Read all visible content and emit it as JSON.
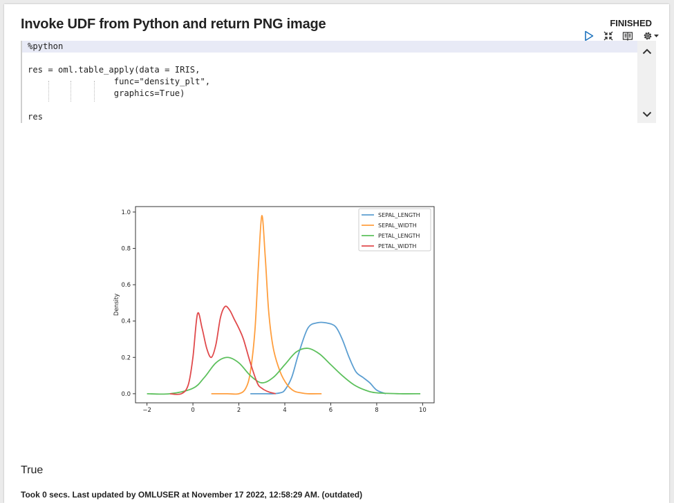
{
  "paragraph": {
    "title": "Invoke UDF from Python and return PNG image",
    "status": "FINISHED"
  },
  "toolbar": {
    "icons": [
      "run-icon",
      "collapse-icon",
      "book-icon",
      "gear-icon",
      "caret-down-icon"
    ]
  },
  "editor": {
    "lines": [
      "%python",
      "",
      "res = oml.table_apply(data = IRIS,",
      "                 func=\"density_plt\",",
      "                 graphics=True)",
      "",
      "res"
    ]
  },
  "colors": {
    "accent": "#1e73be",
    "active_line": "#e8eaf6",
    "sepal_length": "#5b9ed1",
    "sepal_width": "#ff9e3d",
    "petal_length": "#5cc05c",
    "petal_width": "#e0494b"
  },
  "chart_data": {
    "type": "line",
    "title": "",
    "xlabel": "",
    "ylabel": "Density",
    "xlim": [
      -2.5,
      10.5
    ],
    "ylim": [
      -0.05,
      1.03
    ],
    "x_ticks": [
      -2,
      0,
      2,
      4,
      6,
      8,
      10
    ],
    "y_ticks": [
      "0.0",
      "0.2",
      "0.4",
      "0.6",
      "0.8",
      "1.0"
    ],
    "legend_position": "top-right",
    "series": [
      {
        "name": "SEPAL_LENGTH",
        "x": [
          2.5,
          3.0,
          3.5,
          3.8,
          4.0,
          4.3,
          4.6,
          5.0,
          5.4,
          5.8,
          6.2,
          6.5,
          6.8,
          7.1,
          7.4,
          7.7,
          8.0,
          8.4
        ],
        "y": [
          0.0,
          0.0,
          0.0,
          0.005,
          0.02,
          0.09,
          0.22,
          0.36,
          0.39,
          0.39,
          0.37,
          0.3,
          0.2,
          0.12,
          0.09,
          0.06,
          0.02,
          0.0
        ]
      },
      {
        "name": "SEPAL_WIDTH",
        "x": [
          0.8,
          1.5,
          2.0,
          2.3,
          2.5,
          2.7,
          2.85,
          3.0,
          3.15,
          3.3,
          3.5,
          3.8,
          4.1,
          4.4,
          4.7,
          5.0,
          5.6
        ],
        "y": [
          0.0,
          0.0,
          0.0,
          0.03,
          0.12,
          0.35,
          0.7,
          0.98,
          0.75,
          0.45,
          0.25,
          0.12,
          0.05,
          0.015,
          0.005,
          0.0,
          0.0
        ]
      },
      {
        "name": "PETAL_LENGTH",
        "x": [
          -2.0,
          -1.0,
          0.0,
          0.5,
          1.0,
          1.5,
          2.0,
          2.5,
          3.0,
          3.5,
          4.0,
          4.5,
          5.0,
          5.5,
          6.0,
          6.5,
          7.0,
          7.5,
          8.0,
          9.0,
          9.9
        ],
        "y": [
          0.0,
          0.0,
          0.03,
          0.09,
          0.17,
          0.2,
          0.17,
          0.1,
          0.06,
          0.09,
          0.16,
          0.23,
          0.25,
          0.22,
          0.16,
          0.1,
          0.05,
          0.02,
          0.005,
          0.0,
          0.0
        ]
      },
      {
        "name": "PETAL_WIDTH",
        "x": [
          -1.0,
          -0.5,
          -0.2,
          0.0,
          0.2,
          0.4,
          0.6,
          0.8,
          1.0,
          1.2,
          1.4,
          1.6,
          1.8,
          2.0,
          2.2,
          2.5,
          2.8,
          3.0,
          3.3,
          3.6
        ],
        "y": [
          0.0,
          0.0,
          0.05,
          0.2,
          0.44,
          0.36,
          0.25,
          0.2,
          0.27,
          0.42,
          0.48,
          0.46,
          0.41,
          0.36,
          0.3,
          0.17,
          0.06,
          0.03,
          0.01,
          0.0
        ]
      }
    ]
  },
  "output": {
    "result_text": "True",
    "footer": "Took 0 secs. Last updated by OMLUSER at November 17 2022, 12:58:29 AM. (outdated)"
  }
}
